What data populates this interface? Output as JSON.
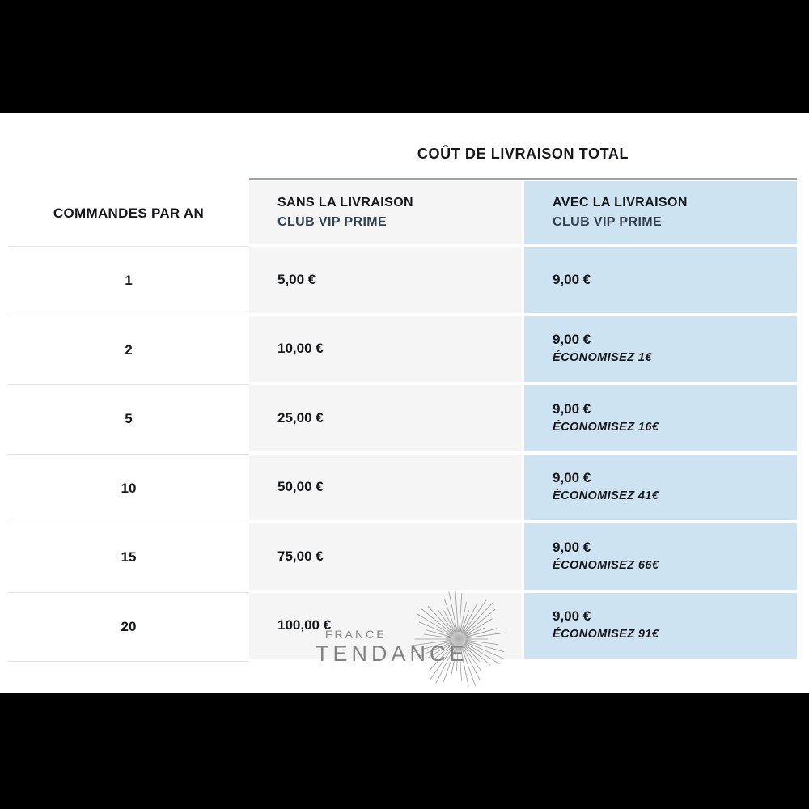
{
  "chart_data": {
    "type": "table",
    "title": "COÛT DE LIVRAISON TOTAL",
    "columns": [
      {
        "key": "orders_per_year",
        "label": "COMMANDES PAR AN"
      },
      {
        "key": "without_club",
        "label_line1": "SANS LA LIVRAISON",
        "label_line2": "CLUB VIP PRIME"
      },
      {
        "key": "with_club",
        "label_line1": "AVEC LA LIVRAISON",
        "label_line2": "CLUB VIP PRIME"
      }
    ],
    "rows": [
      {
        "orders": "1",
        "without_price": "5,00 €",
        "with_price": "9,00 €",
        "savings_note": ""
      },
      {
        "orders": "2",
        "without_price": "10,00 €",
        "with_price": "9,00 €",
        "savings_note": "ÉCONOMISEZ 1€"
      },
      {
        "orders": "5",
        "without_price": "25,00 €",
        "with_price": "9,00 €",
        "savings_note": "ÉCONOMISEZ 16€"
      },
      {
        "orders": "10",
        "without_price": "50,00 €",
        "with_price": "9,00 €",
        "savings_note": "ÉCONOMISEZ 41€"
      },
      {
        "orders": "15",
        "without_price": "75,00 €",
        "with_price": "9,00 €",
        "savings_note": "ÉCONOMISEZ 66€"
      },
      {
        "orders": "20",
        "without_price": "100,00 €",
        "with_price": "9,00 €",
        "savings_note": "ÉCONOMISEZ 91€"
      }
    ],
    "layout": {
      "legend": "none",
      "grid": "row-separators",
      "highlight_column": "with_club"
    }
  },
  "logo": {
    "brand_line1": "FRANCE",
    "brand_line2": "TENDANCE",
    "icon": "starburst-icon"
  },
  "colors": {
    "background": "#ffffff",
    "letterbox_bars": "#000000",
    "without_column_bg": "#f5f5f6",
    "with_column_bg": "#cee3f2",
    "club_vip_label": "#333f4d",
    "title_text": "#15171a",
    "row_separator": "#e4e4e4",
    "header_top_line": "#9aa1a8",
    "logo_gray": "#8a8a8a"
  }
}
